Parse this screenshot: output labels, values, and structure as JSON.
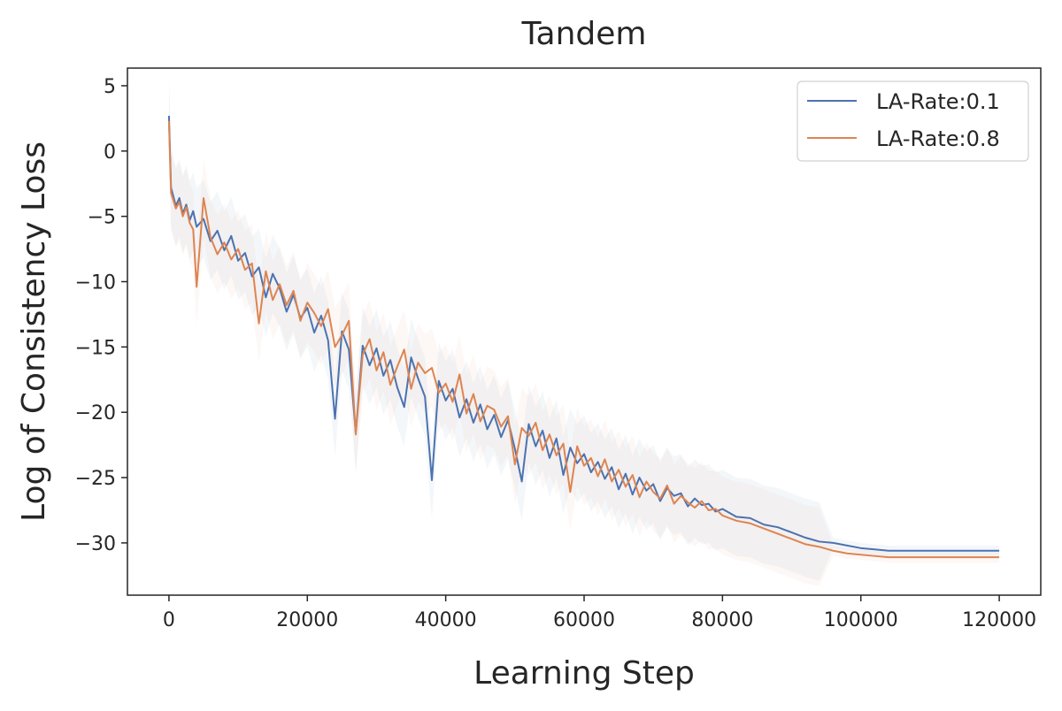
{
  "chart_data": {
    "type": "line",
    "title": "Tandem",
    "xlabel": "Learning Step",
    "ylabel": "Log of Consistency Loss",
    "xlim": [
      -6000,
      126000
    ],
    "ylim": [
      -34,
      6.35
    ],
    "xticks": [
      0,
      20000,
      40000,
      60000,
      80000,
      100000,
      120000
    ],
    "xtick_labels": [
      "0",
      "20000",
      "40000",
      "60000",
      "80000",
      "100000",
      "120000"
    ],
    "yticks": [
      5,
      0,
      -5,
      -10,
      -15,
      -20,
      -25,
      -30
    ],
    "ytick_labels": [
      "5",
      "0",
      "−5",
      "−10",
      "−15",
      "−20",
      "−25",
      "−30"
    ],
    "grid": false,
    "legend_position": "top-right",
    "series": [
      {
        "name": "LA-Rate:0.1",
        "color": "#4c72b0",
        "x": [
          0,
          300,
          1000,
          1500,
          2000,
          2500,
          3000,
          3500,
          4000,
          5000,
          6000,
          7000,
          8000,
          9000,
          10000,
          11000,
          12000,
          13000,
          14000,
          15000,
          16000,
          17000,
          18000,
          19000,
          20000,
          21000,
          22000,
          23000,
          24000,
          25000,
          26000,
          27000,
          28000,
          29000,
          30000,
          31000,
          32000,
          33000,
          34000,
          35000,
          36000,
          37000,
          38000,
          39000,
          40000,
          41000,
          42000,
          43000,
          44000,
          45000,
          46000,
          47000,
          48000,
          49000,
          50000,
          51000,
          52000,
          53000,
          54000,
          55000,
          56000,
          57000,
          58000,
          59000,
          60000,
          61000,
          62000,
          63000,
          64000,
          65000,
          66000,
          67000,
          68000,
          69000,
          70000,
          71000,
          72000,
          73000,
          74000,
          75000,
          76000,
          77000,
          78000,
          79000,
          80000,
          82000,
          84000,
          86000,
          88000,
          90000,
          92000,
          94000,
          96000,
          98000,
          100000,
          102000,
          104000,
          106000,
          110000,
          115000,
          120000
        ],
        "y": [
          2.7,
          -2.8,
          -4.2,
          -3.6,
          -4.8,
          -4.1,
          -5.3,
          -4.6,
          -5.8,
          -5.2,
          -6.9,
          -6.1,
          -7.6,
          -6.5,
          -8.4,
          -7.8,
          -9.6,
          -8.9,
          -11.2,
          -9.4,
          -10.5,
          -12.3,
          -11.0,
          -12.8,
          -12.0,
          -13.9,
          -12.6,
          -14.5,
          -20.5,
          -13.8,
          -15.2,
          -21.6,
          -14.9,
          -16.4,
          -15.1,
          -17.2,
          -16.0,
          -18.1,
          -19.6,
          -15.8,
          -17.4,
          -18.8,
          -25.2,
          -17.6,
          -19.1,
          -18.2,
          -20.4,
          -19.0,
          -20.8,
          -19.4,
          -21.3,
          -20.2,
          -21.9,
          -20.6,
          -22.8,
          -25.3,
          -20.9,
          -22.6,
          -21.4,
          -23.5,
          -22.0,
          -24.8,
          -22.7,
          -23.9,
          -23.2,
          -24.6,
          -23.8,
          -25.1,
          -24.2,
          -25.9,
          -24.7,
          -26.3,
          -25.0,
          -26.0,
          -25.5,
          -26.8,
          -25.8,
          -26.4,
          -26.2,
          -27.2,
          -26.6,
          -27.1,
          -27.0,
          -27.6,
          -27.4,
          -28.0,
          -28.1,
          -28.6,
          -28.8,
          -29.2,
          -29.6,
          -29.9,
          -30.0,
          -30.2,
          -30.4,
          -30.5,
          -30.6,
          -30.6,
          -30.6,
          -30.6,
          -30.6
        ]
      },
      {
        "name": "LA-Rate:0.8",
        "color": "#dd8452",
        "x": [
          0,
          300,
          1000,
          1500,
          2000,
          2500,
          3000,
          3500,
          4000,
          5000,
          6000,
          7000,
          8000,
          9000,
          10000,
          11000,
          12000,
          13000,
          14000,
          15000,
          16000,
          17000,
          18000,
          19000,
          20000,
          21000,
          22000,
          23000,
          24000,
          25000,
          26000,
          27000,
          28000,
          29000,
          30000,
          31000,
          32000,
          33000,
          34000,
          35000,
          36000,
          37000,
          38000,
          39000,
          40000,
          41000,
          42000,
          43000,
          44000,
          45000,
          46000,
          47000,
          48000,
          49000,
          50000,
          51000,
          52000,
          53000,
          54000,
          55000,
          56000,
          57000,
          58000,
          59000,
          60000,
          61000,
          62000,
          63000,
          64000,
          65000,
          66000,
          67000,
          68000,
          69000,
          70000,
          71000,
          72000,
          73000,
          74000,
          75000,
          76000,
          77000,
          78000,
          79000,
          80000,
          82000,
          84000,
          86000,
          88000,
          90000,
          92000,
          94000,
          96000,
          98000,
          100000,
          102000,
          104000,
          106000,
          110000,
          115000,
          120000
        ],
        "y": [
          2.3,
          -3.2,
          -4.4,
          -3.9,
          -5.0,
          -4.3,
          -5.5,
          -6.0,
          -10.4,
          -3.6,
          -6.6,
          -7.9,
          -7.0,
          -8.3,
          -7.5,
          -9.1,
          -8.6,
          -13.2,
          -9.2,
          -11.4,
          -10.2,
          -11.8,
          -10.7,
          -13.0,
          -11.6,
          -12.4,
          -13.4,
          -12.1,
          -15.0,
          -14.1,
          -13.0,
          -21.7,
          -15.6,
          -14.4,
          -16.8,
          -15.4,
          -17.9,
          -16.5,
          -15.2,
          -18.2,
          -16.2,
          -17.0,
          -16.6,
          -18.5,
          -17.8,
          -19.2,
          -17.1,
          -20.1,
          -18.6,
          -20.7,
          -19.5,
          -19.8,
          -21.1,
          -20.3,
          -24.0,
          -21.2,
          -21.8,
          -20.8,
          -22.9,
          -21.7,
          -23.3,
          -22.4,
          -26.1,
          -22.6,
          -24.1,
          -23.5,
          -24.9,
          -23.6,
          -25.3,
          -24.4,
          -25.7,
          -24.8,
          -26.5,
          -25.3,
          -26.1,
          -26.6,
          -25.6,
          -27.0,
          -26.4,
          -26.9,
          -27.3,
          -26.8,
          -27.5,
          -27.4,
          -27.9,
          -28.3,
          -28.5,
          -28.9,
          -29.3,
          -29.7,
          -30.1,
          -30.3,
          -30.6,
          -30.8,
          -30.9,
          -31.0,
          -31.1,
          -31.1,
          -31.1,
          -31.1,
          -31.1
        ]
      }
    ]
  }
}
